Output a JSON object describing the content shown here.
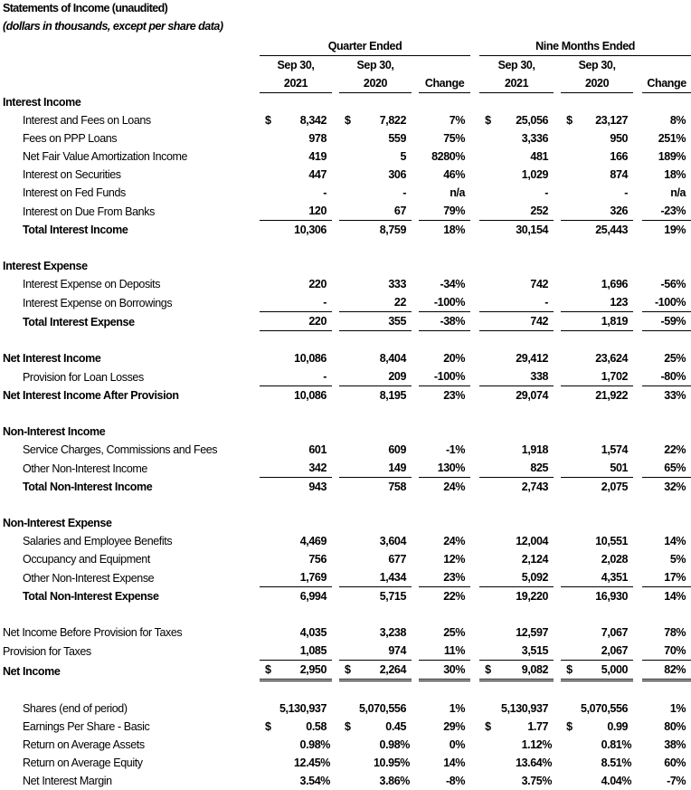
{
  "title": "Statements of Income (unaudited)",
  "subtitle": "(dollars in thousands, except per share data)",
  "header": {
    "groups": [
      "Quarter Ended",
      "Nine Months Ended"
    ],
    "line1": [
      "Sep 30,",
      "Sep 30,",
      "",
      "Sep 30,",
      "Sep 30,",
      ""
    ],
    "line2": [
      "2021",
      "2020",
      "Change",
      "2021",
      "2020",
      "Change"
    ]
  },
  "rows": [
    {
      "label": "Interest Income",
      "style": "section"
    },
    {
      "label": "Interest and Fees on Loans",
      "style": "item",
      "dollar": true,
      "values": [
        "8,342",
        "7,822",
        "7%",
        "25,056",
        "23,127",
        "8%"
      ]
    },
    {
      "label": "Fees on PPP Loans",
      "style": "item",
      "values": [
        "978",
        "559",
        "75%",
        "3,336",
        "950",
        "251%"
      ]
    },
    {
      "label": "Net Fair Value Amortization Income",
      "style": "item",
      "values": [
        "419",
        "5",
        "8280%",
        "481",
        "166",
        "189%"
      ]
    },
    {
      "label": "Interest on Securities",
      "style": "item",
      "values": [
        "447",
        "306",
        "46%",
        "1,029",
        "874",
        "18%"
      ]
    },
    {
      "label": "Interest on Fed Funds",
      "style": "item",
      "values": [
        "-",
        "-",
        "n/a",
        "-",
        "-",
        "n/a"
      ]
    },
    {
      "label": "Interest on Due From Banks",
      "style": "item",
      "rule": "single",
      "values": [
        "120",
        "67",
        "79%",
        "252",
        "326",
        "-23%"
      ]
    },
    {
      "label": "Total Interest Income",
      "style": "total",
      "values": [
        "10,306",
        "8,759",
        "18%",
        "30,154",
        "25,443",
        "19%"
      ]
    },
    {
      "style": "blank"
    },
    {
      "label": "Interest Expense",
      "style": "section"
    },
    {
      "label": "Interest Expense on Deposits",
      "style": "item",
      "values": [
        "220",
        "333",
        "-34%",
        "742",
        "1,696",
        "-56%"
      ]
    },
    {
      "label": "Interest Expense on Borrowings",
      "style": "item",
      "rule": "single",
      "values": [
        "-",
        "22",
        "-100%",
        "-",
        "123",
        "-100%"
      ]
    },
    {
      "label": "Total Interest Expense",
      "style": "total",
      "rule": "single",
      "values": [
        "220",
        "355",
        "-38%",
        "742",
        "1,819",
        "-59%"
      ]
    },
    {
      "style": "blank"
    },
    {
      "label": "Net Interest Income",
      "style": "major",
      "values": [
        "10,086",
        "8,404",
        "20%",
        "29,412",
        "23,624",
        "25%"
      ]
    },
    {
      "label": "Provision for Loan Losses",
      "style": "item",
      "rule": "single",
      "values": [
        "-",
        "209",
        "-100%",
        "338",
        "1,702",
        "-80%"
      ]
    },
    {
      "label": "Net Interest Income After Provision",
      "style": "major",
      "values": [
        "10,086",
        "8,195",
        "23%",
        "29,074",
        "21,922",
        "33%"
      ]
    },
    {
      "style": "blank"
    },
    {
      "label": "Non-Interest Income",
      "style": "section"
    },
    {
      "label": "Service Charges, Commissions and Fees",
      "style": "item",
      "values": [
        "601",
        "609",
        "-1%",
        "1,918",
        "1,574",
        "22%"
      ]
    },
    {
      "label": "Other Non-Interest Income",
      "style": "item",
      "rule": "single",
      "values": [
        "342",
        "149",
        "130%",
        "825",
        "501",
        "65%"
      ]
    },
    {
      "label": "Total Non-Interest Income",
      "style": "total",
      "values": [
        "943",
        "758",
        "24%",
        "2,743",
        "2,075",
        "32%"
      ]
    },
    {
      "style": "blank"
    },
    {
      "label": "Non-Interest Expense",
      "style": "section"
    },
    {
      "label": "Salaries and Employee Benefits",
      "style": "item",
      "values": [
        "4,469",
        "3,604",
        "24%",
        "12,004",
        "10,551",
        "14%"
      ]
    },
    {
      "label": "Occupancy and Equipment",
      "style": "item",
      "values": [
        "756",
        "677",
        "12%",
        "2,124",
        "2,028",
        "5%"
      ]
    },
    {
      "label": "Other Non-Interest Expense",
      "style": "item",
      "rule": "single",
      "values": [
        "1,769",
        "1,434",
        "23%",
        "5,092",
        "4,351",
        "17%"
      ]
    },
    {
      "label": "Total Non-Interest Expense",
      "style": "total",
      "values": [
        "6,994",
        "5,715",
        "22%",
        "19,220",
        "16,930",
        "14%"
      ]
    },
    {
      "style": "blank"
    },
    {
      "label": "Net Income Before Provision for Taxes",
      "style": "plain",
      "values": [
        "4,035",
        "3,238",
        "25%",
        "12,597",
        "7,067",
        "78%"
      ]
    },
    {
      "label": "Provision for Taxes",
      "style": "plain",
      "rule": "single",
      "values": [
        "1,085",
        "974",
        "11%",
        "3,515",
        "2,067",
        "70%"
      ]
    },
    {
      "label": "Net Income",
      "style": "major",
      "dollar": true,
      "rule": "double",
      "values": [
        "2,950",
        "2,264",
        "30%",
        "9,082",
        "5,000",
        "82%"
      ]
    },
    {
      "style": "blank"
    },
    {
      "label": "Shares (end of period)",
      "style": "item",
      "values": [
        "5,130,937",
        "5,070,556",
        "1%",
        "5,130,937",
        "5,070,556",
        "1%"
      ]
    },
    {
      "label": "Earnings Per Share - Basic",
      "style": "item",
      "dollar": true,
      "values": [
        "0.58",
        "0.45",
        "29%",
        "1.77",
        "0.99",
        "80%"
      ]
    },
    {
      "label": "Return on Average Assets",
      "style": "item",
      "pct": true,
      "values": [
        "0.98%",
        "0.98%",
        "0%",
        "1.12%",
        "0.81%",
        "38%"
      ]
    },
    {
      "label": "Return on Average Equity",
      "style": "item",
      "pct": true,
      "values": [
        "12.45%",
        "10.95%",
        "14%",
        "13.64%",
        "8.51%",
        "60%"
      ]
    },
    {
      "label": "Net Interest Margin",
      "style": "item",
      "pct": true,
      "values": [
        "3.54%",
        "3.86%",
        "-8%",
        "3.75%",
        "4.04%",
        "-7%"
      ]
    }
  ],
  "currency_symbol": "$"
}
